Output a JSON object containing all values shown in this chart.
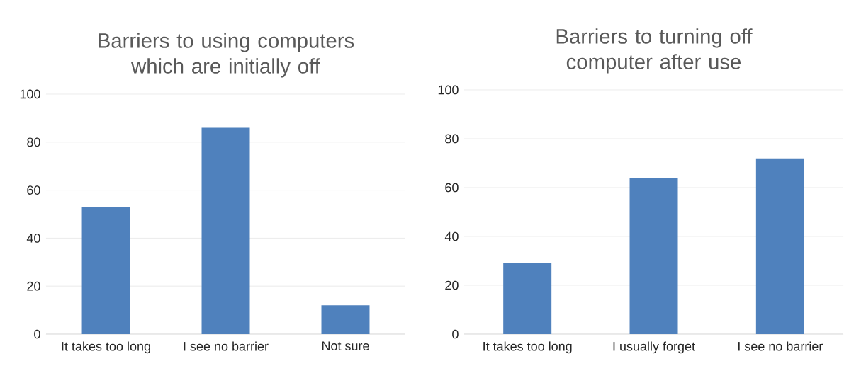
{
  "chart_data": [
    {
      "type": "bar",
      "title": "Barriers to using computers which are initially off",
      "categories": [
        "It takes too long",
        "I see no barrier",
        "Not sure"
      ],
      "values": [
        53,
        86,
        12
      ],
      "color": "#4f81bd",
      "ylim": [
        0,
        100
      ],
      "yticks": [
        0,
        20,
        40,
        60,
        80,
        100
      ],
      "grid": "y"
    },
    {
      "type": "bar",
      "title": "Barriers to turning off computer after use",
      "categories": [
        "It takes too long",
        "I usually forget",
        "I see no barrier"
      ],
      "values": [
        29,
        64,
        72
      ],
      "color": "#4f81bd",
      "ylim": [
        0,
        100
      ],
      "yticks": [
        0,
        20,
        40,
        60,
        80,
        100
      ],
      "grid": "y"
    }
  ]
}
